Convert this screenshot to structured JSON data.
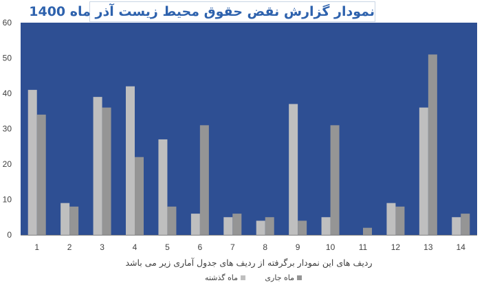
{
  "chart_data": {
    "type": "bar",
    "title": "نمودار گزارش نقض حقوق محیط زیست آذر ماه 1400",
    "xlabel": "ردیف های این نمودار برگرفته از ردیف های جدول آماری زیر می باشد",
    "ylabel": "",
    "ylim": [
      0,
      60
    ],
    "yticks": [
      0,
      10,
      20,
      30,
      40,
      50,
      60
    ],
    "categories": [
      "1",
      "2",
      "3",
      "4",
      "5",
      "6",
      "7",
      "8",
      "9",
      "10",
      "11",
      "12",
      "13",
      "14"
    ],
    "series": [
      {
        "name": "ماه گذشته",
        "color": "#bfbfbf",
        "values": [
          41,
          9,
          39,
          42,
          27,
          6,
          5,
          4,
          37,
          5,
          0,
          9,
          36,
          5
        ]
      },
      {
        "name": "ماه جاری",
        "color": "#959595",
        "values": [
          34,
          8,
          36,
          22,
          8,
          31,
          6,
          5,
          4,
          31,
          2,
          8,
          51,
          6
        ]
      }
    ],
    "grid": false,
    "legend_position": "bottom",
    "plot_background": "#2e4f93"
  }
}
